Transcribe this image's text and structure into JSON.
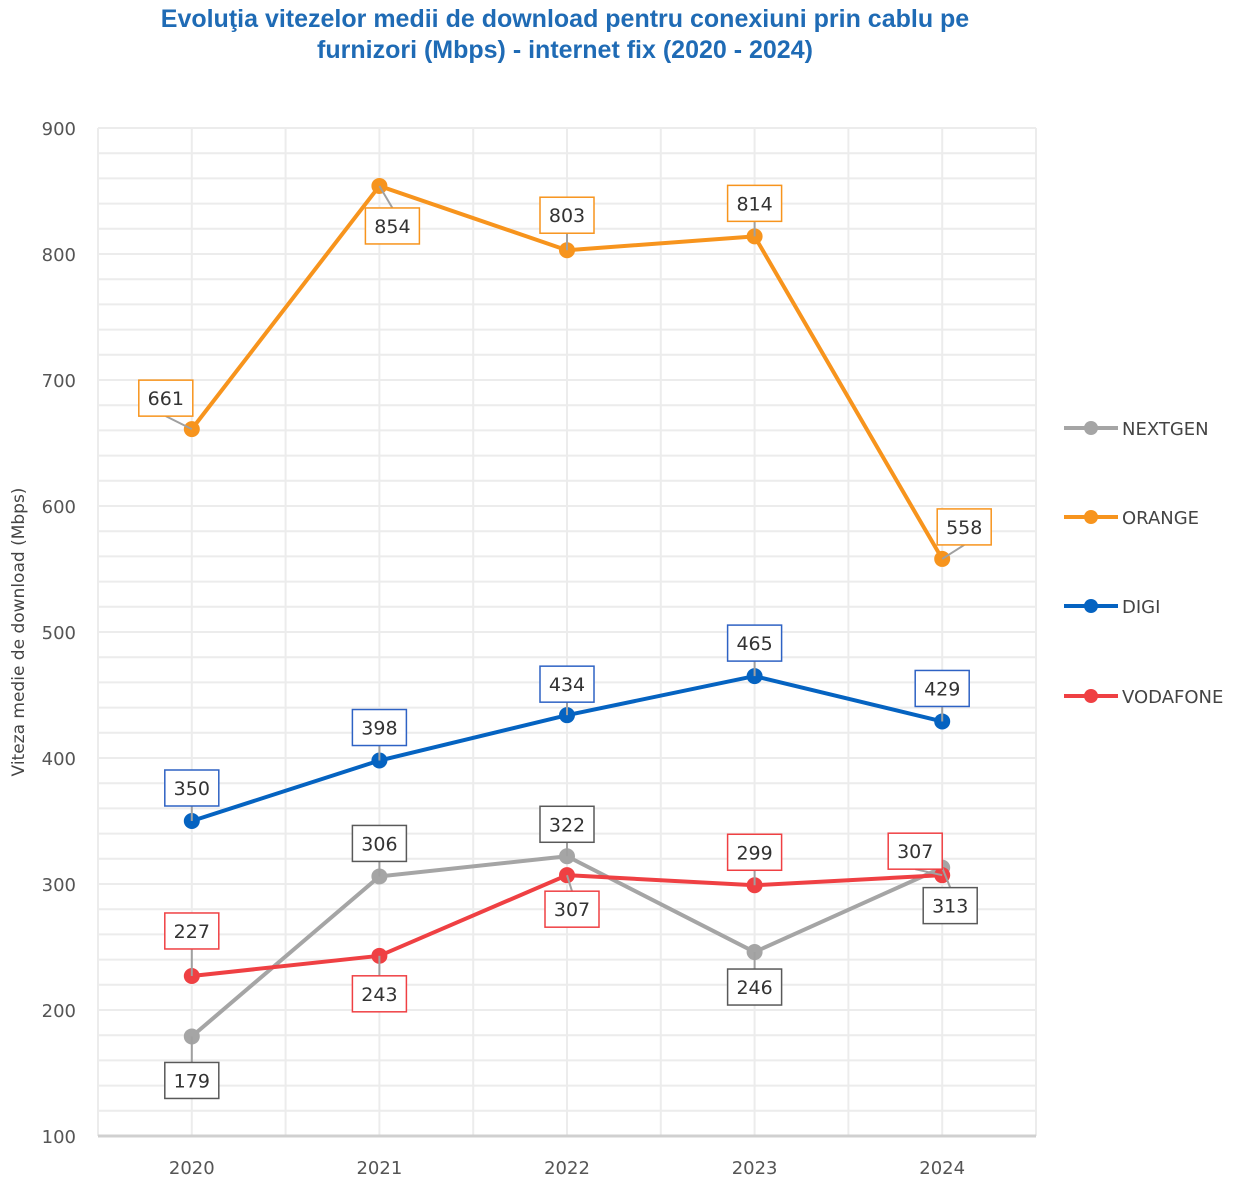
{
  "chart_data": {
    "type": "line",
    "title_line1": "Evoluţia vitezelor medii de download pentru conexiuni prin cablu pe",
    "title_line2": "furnizori (Mbps) - internet fix (2020 - 2024)",
    "xlabel": "",
    "ylabel": "Viteza medie de download (Mbps)",
    "categories": [
      "2020",
      "2021",
      "2022",
      "2023",
      "2024"
    ],
    "ylim": [
      100,
      900
    ],
    "yticks": [
      100,
      200,
      300,
      400,
      500,
      600,
      700,
      800,
      900
    ],
    "grid": true,
    "legend_position": "right",
    "series": [
      {
        "name": "NEXTGEN",
        "color": "#a5a5a5",
        "values": [
          179,
          306,
          322,
          246,
          313
        ]
      },
      {
        "name": "ORANGE",
        "color": "#f7941d",
        "values": [
          661,
          854,
          803,
          814,
          558
        ]
      },
      {
        "name": "DIGI",
        "color": "#0563c1",
        "values": [
          350,
          398,
          434,
          465,
          429
        ]
      },
      {
        "name": "VODAFONE",
        "color": "#ef4043",
        "values": [
          227,
          243,
          307,
          299,
          307
        ]
      }
    ]
  }
}
